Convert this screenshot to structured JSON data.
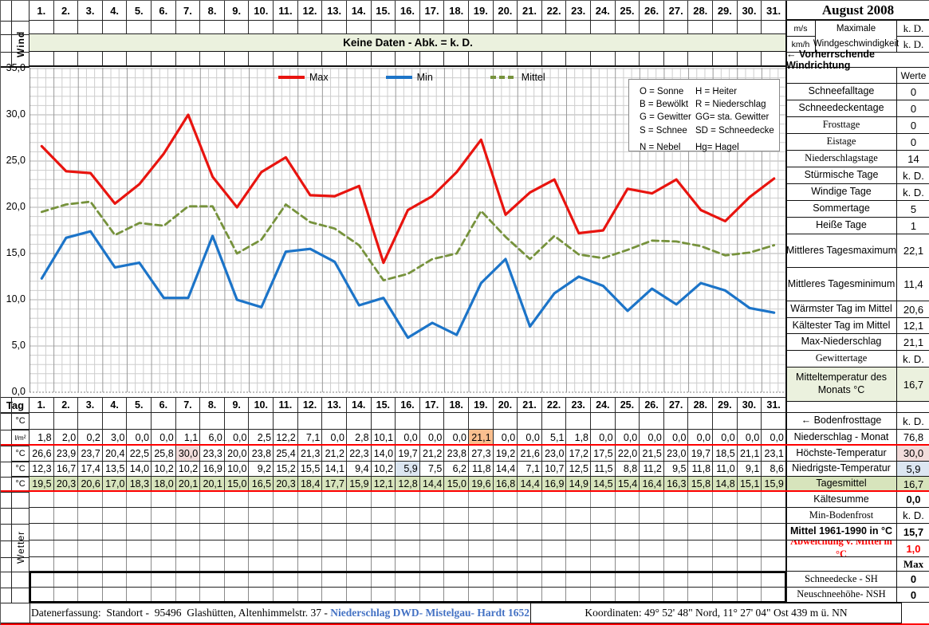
{
  "title": "August 2008",
  "colors": {
    "banner_green": "#ebf1de",
    "row_green": "#d7e4bc",
    "hl_orange": "#fabf8f",
    "hl_pink": "#f2dcdb",
    "hl_blue": "#dce6f1",
    "red_line": "#ff0000",
    "max_line": "#e8140f",
    "min_line": "#1c74c8",
    "mittel_line": "#76923c",
    "link_blue": "#4472c4"
  },
  "top": {
    "wind_label": "Wind",
    "days": [
      "1.",
      "2.",
      "3.",
      "4.",
      "5.",
      "6.",
      "7.",
      "8.",
      "9.",
      "10.",
      "11.",
      "12.",
      "13.",
      "14.",
      "15.",
      "16.",
      "17.",
      "18.",
      "19.",
      "20.",
      "21.",
      "22.",
      "23.",
      "24.",
      "25.",
      "26.",
      "27.",
      "28.",
      "29.",
      "30.",
      "31."
    ],
    "no_data_banner": "Keine Daten - Abk. = k. D.",
    "wind_speed": {
      "unit1": "m/s",
      "unit2": "km/h",
      "label": "Maximale Windgeschwindigkeit",
      "value1": "k. D.",
      "value2": "k. D."
    },
    "wind_direction_label": "←  Vorherrschende Windrichtung"
  },
  "chart_data": {
    "type": "line",
    "x": [
      1,
      2,
      3,
      4,
      5,
      6,
      7,
      8,
      9,
      10,
      11,
      12,
      13,
      14,
      15,
      16,
      17,
      18,
      19,
      20,
      21,
      22,
      23,
      24,
      25,
      26,
      27,
      28,
      29,
      30,
      31
    ],
    "ylim": [
      0,
      35
    ],
    "yticks": [
      "35,0",
      "30,0",
      "25,0",
      "20,0",
      "15,0",
      "10,0",
      "5,0",
      "0,0"
    ],
    "grid": true,
    "legend_position": "top-inside",
    "series": [
      {
        "name": "Max",
        "style": "solid",
        "color": "#e8140f",
        "values": [
          26.6,
          23.9,
          23.7,
          20.4,
          22.5,
          25.8,
          30.0,
          23.3,
          20.0,
          23.8,
          25.4,
          21.3,
          21.2,
          22.3,
          14.0,
          19.7,
          21.2,
          23.8,
          27.3,
          19.2,
          21.6,
          23.0,
          17.2,
          17.5,
          22.0,
          21.5,
          23.0,
          19.7,
          18.5,
          21.1,
          23.1
        ]
      },
      {
        "name": "Min",
        "style": "solid",
        "color": "#1c74c8",
        "values": [
          12.3,
          16.7,
          17.4,
          13.5,
          14.0,
          10.2,
          10.2,
          16.9,
          10.0,
          9.2,
          15.2,
          15.5,
          14.1,
          9.4,
          10.2,
          5.9,
          7.5,
          6.2,
          11.8,
          14.4,
          7.1,
          10.7,
          12.5,
          11.5,
          8.8,
          11.2,
          9.5,
          11.8,
          11.0,
          9.1,
          8.6
        ]
      },
      {
        "name": "Mittel",
        "style": "dashed",
        "color": "#76923c",
        "values": [
          19.5,
          20.3,
          20.6,
          17.0,
          18.3,
          18.0,
          20.1,
          20.1,
          15.0,
          16.5,
          20.3,
          18.4,
          17.7,
          15.9,
          12.1,
          12.8,
          14.4,
          15.0,
          19.6,
          16.8,
          14.4,
          16.9,
          14.9,
          14.5,
          15.4,
          16.4,
          16.3,
          15.8,
          14.8,
          15.1,
          15.9
        ]
      }
    ]
  },
  "weather_codes": {
    "rows": [
      [
        "O = Sonne",
        "H = Heiter"
      ],
      [
        "B = Bewölkt",
        "R = Niederschlag"
      ],
      [
        "G = Gewitter",
        "GG= sta. Gewitter"
      ],
      [
        "S = Schnee",
        "SD = Schneedecke"
      ],
      [
        "N = Nebel",
        "Hg= Hagel"
      ]
    ]
  },
  "stats_panel": {
    "werte_header": "Werte",
    "rows": [
      {
        "label": "Schneefalltage",
        "value": "0"
      },
      {
        "label": "Schneedeckentage",
        "value": "0"
      },
      {
        "label": "Frosttage",
        "value": "0",
        "serif": true
      },
      {
        "label": "Eistage",
        "value": "0",
        "serif": true
      },
      {
        "label": "Niederschlagstage",
        "value": "14",
        "serif": true
      },
      {
        "label": "Stürmische Tage",
        "value": "k. D."
      },
      {
        "label": "Windige Tage",
        "value": "k. D."
      },
      {
        "label": "Sommertage",
        "value": "5"
      },
      {
        "label": "Heiße Tage",
        "value": "1"
      },
      {
        "label": "Mittleres Tagesmaximum",
        "value": "22,1"
      },
      {
        "label": "Mittleres Tagesminimum",
        "value": "11,4"
      },
      {
        "label": "Wärmster Tag im Mittel",
        "value": "20,6"
      },
      {
        "label": "Kältester Tag im Mittel",
        "value": "12,1"
      },
      {
        "label": "Max-Niederschlag",
        "value": "21,1"
      },
      {
        "label": "Gewittertage",
        "value": "k. D.",
        "serif": true
      },
      {
        "label": "Mitteltemperatur des Monats °C",
        "value": "16,7",
        "bg": "green"
      }
    ]
  },
  "day_table": {
    "tag_label": "Tag",
    "rows": [
      {
        "label": "°C",
        "values": [
          "",
          "",
          "",
          "",
          "",
          "",
          "",
          "",
          "",
          "",
          "",
          "",
          "",
          "",
          "",
          "",
          "",
          "",
          "",
          "",
          "",
          "",
          "",
          "",
          "",
          "",
          "",
          "",
          "",
          "",
          ""
        ]
      },
      {
        "label": "l/m²",
        "values": [
          "1,8",
          "2,0",
          "0,2",
          "3,0",
          "0,0",
          "0,0",
          "1,1",
          "6,0",
          "0,0",
          "2,5",
          "12,2",
          "7,1",
          "0,0",
          "2,8",
          "10,1",
          "0,0",
          "0,0",
          "0,0",
          "21,1",
          "0,0",
          "0,0",
          "5,1",
          "1,8",
          "0,0",
          "0,0",
          "0,0",
          "0,0",
          "0,0",
          "0,0",
          "0,0",
          "0,0"
        ],
        "highlight": {
          "18": "orange"
        }
      },
      {
        "label": "°C",
        "values": [
          "26,6",
          "23,9",
          "23,7",
          "20,4",
          "22,5",
          "25,8",
          "30,0",
          "23,3",
          "20,0",
          "23,8",
          "25,4",
          "21,3",
          "21,2",
          "22,3",
          "14,0",
          "19,7",
          "21,2",
          "23,8",
          "27,3",
          "19,2",
          "21,6",
          "23,0",
          "17,2",
          "17,5",
          "22,0",
          "21,5",
          "23,0",
          "19,7",
          "18,5",
          "21,1",
          "23,1"
        ],
        "highlight": {
          "6": "pink"
        }
      },
      {
        "label": "°C",
        "values": [
          "12,3",
          "16,7",
          "17,4",
          "13,5",
          "14,0",
          "10,2",
          "10,2",
          "16,9",
          "10,0",
          "9,2",
          "15,2",
          "15,5",
          "14,1",
          "9,4",
          "10,2",
          "5,9",
          "7,5",
          "6,2",
          "11,8",
          "14,4",
          "7,1",
          "10,7",
          "12,5",
          "11,5",
          "8,8",
          "11,2",
          "9,5",
          "11,8",
          "11,0",
          "9,1",
          "8,6"
        ],
        "highlight": {
          "15": "blue"
        }
      },
      {
        "label": "°C",
        "values": [
          "19,5",
          "20,3",
          "20,6",
          "17,0",
          "18,3",
          "18,0",
          "20,1",
          "20,1",
          "15,0",
          "16,5",
          "20,3",
          "18,4",
          "17,7",
          "15,9",
          "12,1",
          "12,8",
          "14,4",
          "15,0",
          "19,6",
          "16,8",
          "14,4",
          "16,9",
          "14,9",
          "14,5",
          "15,4",
          "16,4",
          "16,3",
          "15,8",
          "14,8",
          "15,1",
          "15,9"
        ],
        "row_bg": "green"
      }
    ]
  },
  "summary_panel": {
    "rows": [
      {
        "label": "",
        "value": ""
      },
      {
        "label": "← Bodenfrosttage",
        "value": "k. D."
      },
      {
        "label": "Niederschlag - Monat",
        "value": "76,8"
      },
      {
        "label": "Höchste-Temperatur",
        "value": "30,0",
        "value_bg": "pink"
      },
      {
        "label": "Niedrigste-Temperatur",
        "value": "5,9",
        "value_bg": "blue"
      },
      {
        "label": "Tagesmittel",
        "value": "16,7",
        "bg": "green"
      },
      {
        "label": "Kältesumme",
        "value": "0,0",
        "bold_value": true
      },
      {
        "label": "Min-Bodenfrost",
        "value": "k. D.",
        "serif": true
      },
      {
        "label": "Mittel 1961-1990 in °C",
        "value": "15,7",
        "bold": true,
        "bold_value": true
      },
      {
        "label": "Abweichung v. Mittel in °C",
        "value": "1,0",
        "red": true,
        "bold": true,
        "bold_value": true,
        "serif": true
      },
      {
        "label": "",
        "value": "Max",
        "bold_value": true,
        "value_serif": true
      },
      {
        "label": "Schneedecke -   SH",
        "value": "0",
        "serif": true,
        "bold_value": true
      },
      {
        "label": "Neuschneehöhe- NSH",
        "value": "0",
        "serif": true,
        "bold_value": true
      }
    ]
  },
  "wetter_label": "Wetter",
  "footer": {
    "left_plain": "Datenerfassung:  Standort -  95496  Glashütten, Altenhimmelstr. 37 - ",
    "left_link": "Niederschlag DWD- Mistelgau- Hardt 1652",
    "right": "Koordinaten:  49° 52' 48\" Nord,   11° 27' 04\" Ost   439 m ü. NN"
  }
}
